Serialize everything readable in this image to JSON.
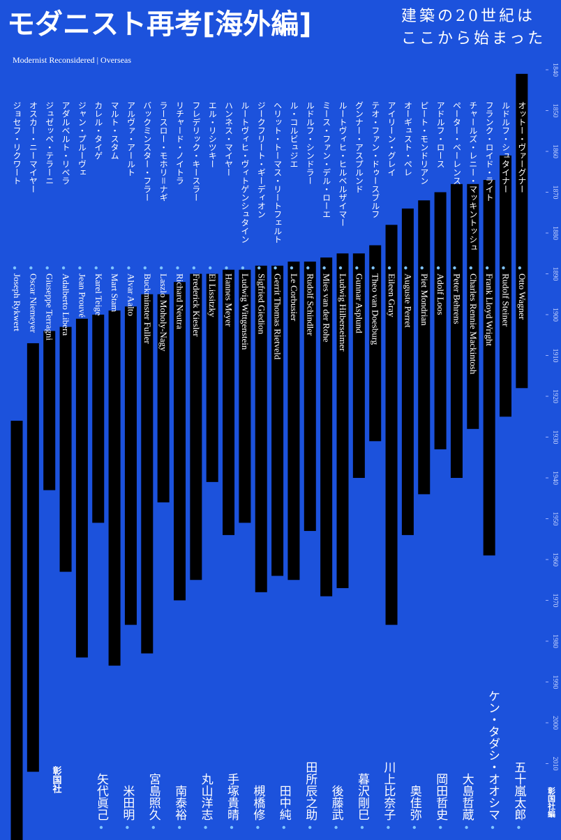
{
  "title": "モダニスト再考[海外編]",
  "tagline": [
    "建築の20世紀は",
    "ここから始まった"
  ],
  "subtitle": "Modernist Reconsidered | Overseas",
  "publisher": [
    "彰国社",
    "彰国社編"
  ],
  "authors": [
    "矢代眞己",
    "米田明",
    "宮島照久",
    "南泰裕",
    "丸山洋志",
    "手塚貴晴",
    "槻橋修",
    "田中純",
    "田所辰之助",
    "後藤武",
    "暮沢剛巳",
    "川上比奈子",
    "奥佳弥",
    "岡田哲史",
    "大島哲蔵",
    "ケン・タダシ・オオシマ",
    "五十嵐太郎"
  ],
  "chart_data": {
    "type": "lifespan",
    "color": "#000000",
    "ylim": [
      1830,
      2020
    ],
    "yticks": [
      1840,
      1850,
      1860,
      1870,
      1880,
      1890,
      1900,
      1910,
      1920,
      1930,
      1940,
      1950,
      1960,
      1970,
      1980,
      1990,
      2000,
      2010
    ],
    "items": [
      {
        "name_en": "Joseph Rykwert",
        "name_ja": "ジョセフ・リクワート",
        "birth": 1926,
        "death": null
      },
      {
        "name_en": "Oscar Niemeyer",
        "name_ja": "オスカー・ニーマイヤー",
        "birth": 1907,
        "death": 2012
      },
      {
        "name_en": "Giuseppe Terragni",
        "name_ja": "ジュゼッペ・テラーニ",
        "birth": 1904,
        "death": 1943
      },
      {
        "name_en": "Adalberto Libera",
        "name_ja": "アダルベルト・リベラ",
        "birth": 1903,
        "death": 1963
      },
      {
        "name_en": "Jean Prouvé",
        "name_ja": "ジャン・プルーヴェ",
        "birth": 1901,
        "death": 1984
      },
      {
        "name_en": "Karel Teige",
        "name_ja": "カレル・タイゲ",
        "birth": 1900,
        "death": 1951
      },
      {
        "name_en": "Mart Stam",
        "name_ja": "マルト・スタム",
        "birth": 1899,
        "death": 1986
      },
      {
        "name_en": "Alvar Aalto",
        "name_ja": "アルヴァ・アールト",
        "birth": 1898,
        "death": 1976
      },
      {
        "name_en": "Buckminster Fuller",
        "name_ja": "バックミンスター・フラー",
        "birth": 1895,
        "death": 1983
      },
      {
        "name_en": "Laszlo Moholy-Nagy",
        "name_ja": "ラースロー・モホリ＝ナギ",
        "birth": 1895,
        "death": 1946
      },
      {
        "name_en": "Richard Neutra",
        "name_ja": "リチャード・ノイトラ",
        "birth": 1892,
        "death": 1970
      },
      {
        "name_en": "Frederick Kiesler",
        "name_ja": "フレデリック・キースラー",
        "birth": 1890,
        "death": 1965
      },
      {
        "name_en": "El Lissitzky",
        "name_ja": "エル・リシツキー",
        "birth": 1890,
        "death": 1941
      },
      {
        "name_en": "Hannes Meyer",
        "name_ja": "ハンネス・マイヤー",
        "birth": 1889,
        "death": 1954
      },
      {
        "name_en": "Ludwig Wittgenstein",
        "name_ja": "ルートヴィヒ・ヴィトゲンシュタイン",
        "birth": 1889,
        "death": 1951
      },
      {
        "name_en": "Sigfried Giedion",
        "name_ja": "ジークフリート・ギーディオン",
        "birth": 1888,
        "death": 1968
      },
      {
        "name_en": "Gerrit Thomas Rietveld",
        "name_ja": "ヘリット・トーマス・リートフェルト",
        "birth": 1888,
        "death": 1964
      },
      {
        "name_en": "Le Corbusier",
        "name_ja": "ル・コルビュジエ",
        "birth": 1887,
        "death": 1965
      },
      {
        "name_en": "Rudolf Schindler",
        "name_ja": "ルドルフ・シンドラー",
        "birth": 1887,
        "death": 1953
      },
      {
        "name_en": "Mies van der Rohe",
        "name_ja": "ミース・ファン・デル・ローエ",
        "birth": 1886,
        "death": 1969
      },
      {
        "name_en": "Ludwig Hilberseimer",
        "name_ja": "ルートヴィヒ・ヒルベルザイマー",
        "birth": 1885,
        "death": 1967
      },
      {
        "name_en": "Gunnar Asplund",
        "name_ja": "グンナー・アスプルンド",
        "birth": 1885,
        "death": 1940
      },
      {
        "name_en": "Theo van Doesburg",
        "name_ja": "テオ・ファン・ドゥースブルフ",
        "birth": 1883,
        "death": 1931
      },
      {
        "name_en": "Eileen Gray",
        "name_ja": "アイリーン・グレイ",
        "birth": 1878,
        "death": 1976
      },
      {
        "name_en": "Auguste Perret",
        "name_ja": "オーギュスト・ペレ",
        "birth": 1874,
        "death": 1954
      },
      {
        "name_en": "Piet Mondrian",
        "name_ja": "ピート・モンドリアン",
        "birth": 1872,
        "death": 1944
      },
      {
        "name_en": "Adolf Loos",
        "name_ja": "アドルフ・ロース",
        "birth": 1870,
        "death": 1933
      },
      {
        "name_en": "Peter Behrens",
        "name_ja": "ペーター・ベーレンス",
        "birth": 1868,
        "death": 1940
      },
      {
        "name_en": "Charles Rennie Mackintosh",
        "name_ja": "チャールズ・レニー・マッキントッシュ",
        "birth": 1868,
        "death": 1928
      },
      {
        "name_en": "Frank Lloyd Wright",
        "name_ja": "フランク・ロイド・ライト",
        "birth": 1867,
        "death": 1959
      },
      {
        "name_en": "Rudolf Steiner",
        "name_ja": "ルドルフ・シュタイナー",
        "birth": 1861,
        "death": 1925
      },
      {
        "name_en": "Otto Wagner",
        "name_ja": "オットー・ヴァーグナー",
        "birth": 1841,
        "death": 1918
      }
    ]
  }
}
